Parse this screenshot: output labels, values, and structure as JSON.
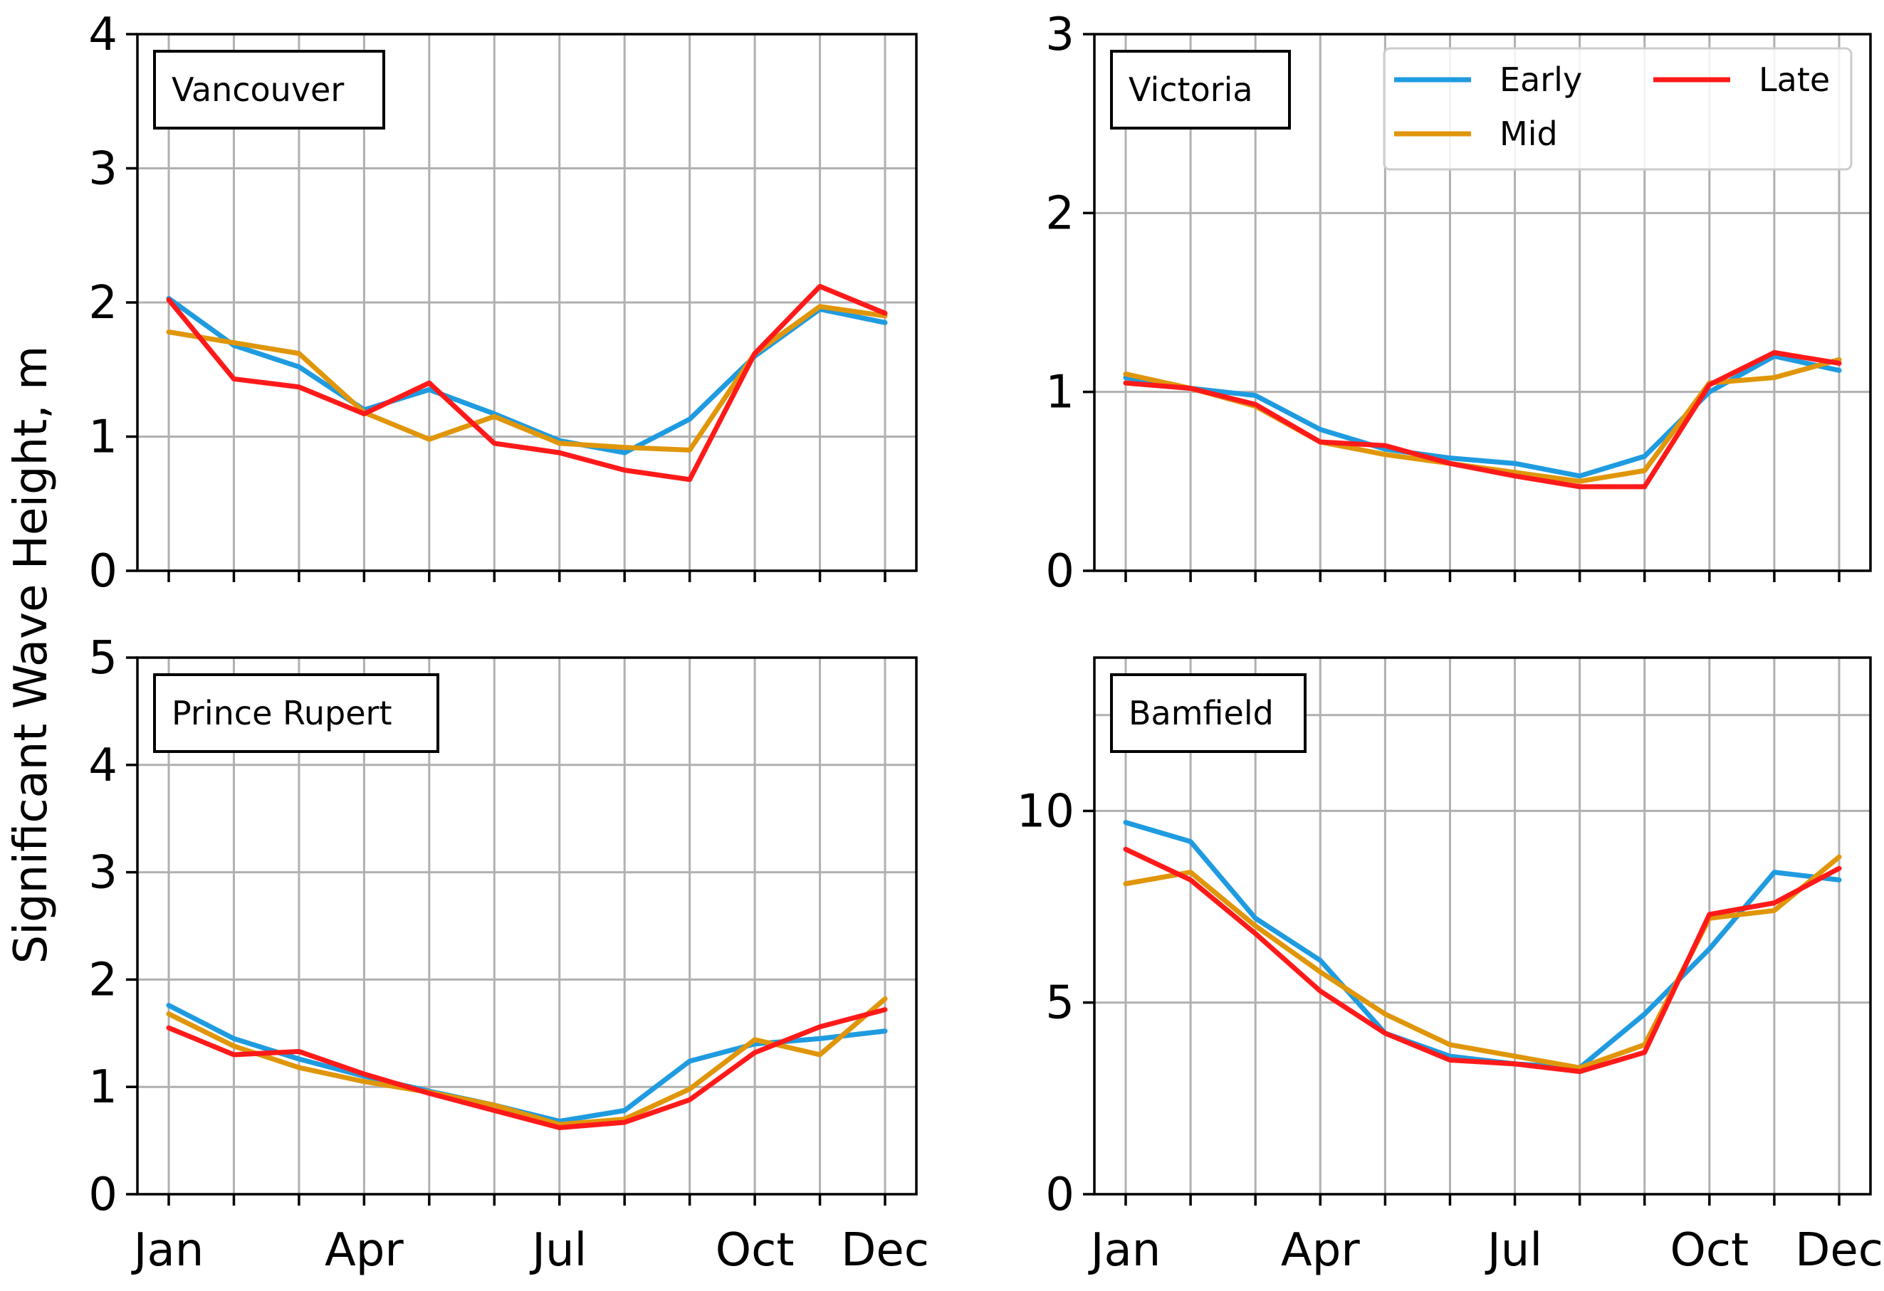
{
  "chart_data": {
    "type": "line",
    "ylabel": "Significant Wave Height, m",
    "xtick_labels": [
      "Jan",
      "Apr",
      "Jul",
      "Oct",
      "Dec"
    ],
    "xtick_months": [
      1,
      4,
      7,
      10,
      12
    ],
    "months": [
      1,
      2,
      3,
      4,
      5,
      6,
      7,
      8,
      9,
      10,
      11,
      12
    ],
    "legend": [
      {
        "name": "Early",
        "color": "#1f9be0"
      },
      {
        "name": "Late",
        "color": "#ff1a1a"
      },
      {
        "name": "Mid",
        "color": "#e0960a"
      }
    ],
    "panels": [
      {
        "title": "Vancouver",
        "ylim": [
          0,
          4
        ],
        "yticks": [
          0,
          1,
          2,
          3,
          4
        ],
        "ytick_labels": [
          "0",
          "1",
          "2",
          "3",
          "4"
        ],
        "show_xtick_labels": false,
        "series": [
          {
            "name": "Early",
            "color": "#1f9be0",
            "values": [
              2.03,
              1.68,
              1.52,
              1.2,
              1.35,
              1.17,
              0.97,
              0.88,
              1.13,
              1.6,
              1.95,
              1.85
            ]
          },
          {
            "name": "Mid",
            "color": "#e0960a",
            "values": [
              1.78,
              1.7,
              1.62,
              1.18,
              0.98,
              1.15,
              0.95,
              0.92,
              0.9,
              1.62,
              1.97,
              1.9
            ]
          },
          {
            "name": "Late",
            "color": "#ff1a1a",
            "values": [
              2.02,
              1.43,
              1.37,
              1.17,
              1.4,
              0.95,
              0.88,
              0.75,
              0.68,
              1.62,
              2.12,
              1.92
            ]
          }
        ]
      },
      {
        "title": "Victoria",
        "ylim": [
          0,
          3
        ],
        "yticks": [
          0,
          1,
          2,
          3
        ],
        "ytick_labels": [
          "0",
          "1",
          "2",
          "3"
        ],
        "show_xtick_labels": false,
        "show_legend": true,
        "series": [
          {
            "name": "Early",
            "color": "#1f9be0",
            "values": [
              1.08,
              1.02,
              0.98,
              0.79,
              0.68,
              0.63,
              0.6,
              0.53,
              0.64,
              1.0,
              1.2,
              1.12
            ]
          },
          {
            "name": "Mid",
            "color": "#e0960a",
            "values": [
              1.1,
              1.02,
              0.92,
              0.72,
              0.65,
              0.6,
              0.55,
              0.5,
              0.56,
              1.05,
              1.08,
              1.18
            ]
          },
          {
            "name": "Late",
            "color": "#ff1a1a",
            "values": [
              1.05,
              1.02,
              0.93,
              0.72,
              0.7,
              0.6,
              0.53,
              0.47,
              0.47,
              1.04,
              1.22,
              1.16
            ]
          }
        ]
      },
      {
        "title": "Prince Rupert",
        "ylim": [
          0,
          5
        ],
        "yticks": [
          0,
          1,
          2,
          3,
          4,
          5
        ],
        "ytick_labels": [
          "0",
          "1",
          "2",
          "3",
          "4",
          "5"
        ],
        "show_xtick_labels": true,
        "series": [
          {
            "name": "Early",
            "color": "#1f9be0",
            "values": [
              1.76,
              1.45,
              1.26,
              1.1,
              0.96,
              0.83,
              0.68,
              0.78,
              1.24,
              1.4,
              1.45,
              1.52
            ]
          },
          {
            "name": "Mid",
            "color": "#e0960a",
            "values": [
              1.68,
              1.38,
              1.18,
              1.05,
              0.95,
              0.83,
              0.65,
              0.7,
              0.98,
              1.44,
              1.3,
              1.82
            ]
          },
          {
            "name": "Late",
            "color": "#ff1a1a",
            "values": [
              1.55,
              1.3,
              1.33,
              1.12,
              0.94,
              0.78,
              0.62,
              0.67,
              0.88,
              1.32,
              1.56,
              1.72
            ]
          }
        ]
      },
      {
        "title": "Bamfield",
        "ylim": [
          0,
          14
        ],
        "yticks": [
          0,
          5,
          10
        ],
        "ytick_labels": [
          "0",
          "5",
          "10"
        ],
        "extra_gridlines": [
          12.5
        ],
        "show_xtick_labels": true,
        "series": [
          {
            "name": "Early",
            "color": "#1f9be0",
            "values": [
              9.7,
              9.2,
              7.2,
              6.1,
              4.2,
              3.6,
              3.4,
              3.3,
              4.7,
              6.4,
              8.4,
              8.2
            ]
          },
          {
            "name": "Mid",
            "color": "#e0960a",
            "values": [
              8.1,
              8.4,
              7.0,
              5.8,
              4.7,
              3.9,
              3.6,
              3.3,
              3.9,
              7.2,
              7.4,
              8.8
            ]
          },
          {
            "name": "Late",
            "color": "#ff1a1a",
            "values": [
              9.0,
              8.2,
              6.8,
              5.3,
              4.2,
              3.5,
              3.4,
              3.2,
              3.7,
              7.3,
              7.6,
              8.5
            ]
          }
        ]
      }
    ]
  }
}
